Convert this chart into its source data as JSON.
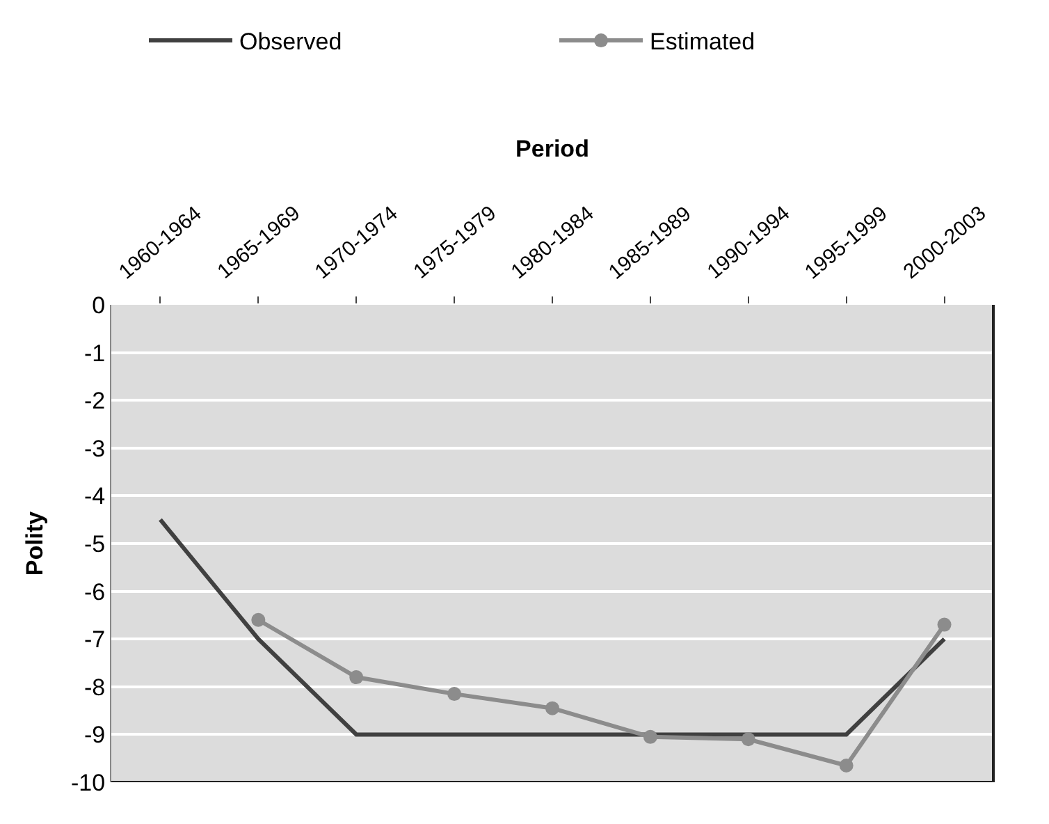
{
  "chart_data": {
    "type": "line",
    "xlabel": "Period",
    "ylabel": "Polity",
    "categories": [
      "1960-1964",
      "1965-1969",
      "1970-1974",
      "1975-1979",
      "1980-1984",
      "1985-1989",
      "1990-1994",
      "1995-1999",
      "2000-2003"
    ],
    "series": [
      {
        "name": "Observed",
        "color": "#404040",
        "marker": "none",
        "values": [
          -4.5,
          -7,
          -9,
          -9,
          -9,
          -9,
          -9,
          -9,
          -7
        ]
      },
      {
        "name": "Estimated",
        "color": "#8c8c8c",
        "marker": "circle",
        "values": [
          null,
          -6.6,
          -7.8,
          -8.15,
          -8.45,
          -9.05,
          -9.1,
          -9.65,
          -6.7
        ]
      }
    ],
    "ylim": [
      -10,
      0
    ],
    "yticks": [
      0,
      -1,
      -2,
      -3,
      -4,
      -5,
      -6,
      -7,
      -8,
      -9,
      -10
    ],
    "grid": "y",
    "legend": "top",
    "line_style": "solid"
  }
}
